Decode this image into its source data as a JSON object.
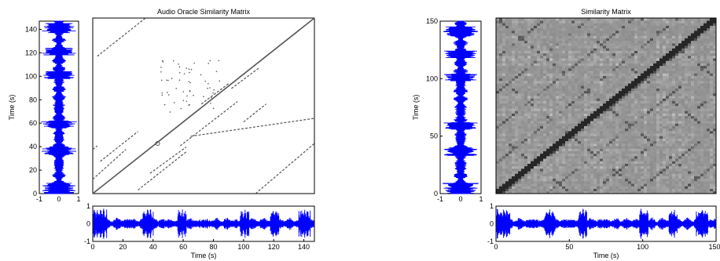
{
  "chart_data": [
    {
      "type": "heatmap",
      "title": "Audio Oracle Similarity Matrix",
      "description": "binary recurrence plot",
      "time_range": [
        0,
        147
      ],
      "main_diagonal": true,
      "recurrence_segments": [
        {
          "x0": 3,
          "y0": 115,
          "x1": 35,
          "y1": 147
        },
        {
          "x0": 0,
          "y0": 37,
          "x1": 3,
          "y1": 40
        },
        {
          "x0": 5,
          "y0": 27,
          "x1": 30,
          "y1": 52
        },
        {
          "x0": 30,
          "y0": 3,
          "x1": 62,
          "y1": 35
        },
        {
          "x0": 38,
          "y0": 17,
          "x1": 62,
          "y1": 39
        },
        {
          "x0": 0,
          "y0": 12,
          "x1": 22,
          "y1": 37
        },
        {
          "x0": 108,
          "y0": 0,
          "x1": 147,
          "y1": 42
        },
        {
          "x0": 58,
          "y0": 40,
          "x1": 96,
          "y1": 77
        },
        {
          "x0": 100,
          "y0": 60,
          "x1": 115,
          "y1": 75
        },
        {
          "x0": 65,
          "y0": 48,
          "x1": 147,
          "y1": 63
        },
        {
          "x0": 92,
          "y0": 88,
          "x1": 110,
          "y1": 105
        },
        {
          "x0": 72,
          "y0": 75,
          "x1": 90,
          "y1": 92
        }
      ],
      "markers": [
        {
          "x": 43,
          "y": 42
        }
      ],
      "left_waveform": {
        "ylabel": "Time (s)",
        "yticks": [
          0,
          20,
          40,
          60,
          80,
          100,
          120,
          140
        ],
        "xticks": [
          -1,
          0,
          1
        ]
      },
      "bottom_waveform": {
        "xlabel": "Time (s)",
        "xticks": [
          0,
          20,
          40,
          60,
          80,
          100,
          120,
          140
        ],
        "yticks": [
          -1,
          0,
          1
        ]
      }
    },
    {
      "type": "heatmap",
      "title": "Similarity Matrix",
      "description": "grayscale self-similarity matrix",
      "time_range": [
        0,
        150
      ],
      "main_diagonal": true,
      "left_waveform": {
        "ylabel": "Time (s)",
        "yticks": [
          0,
          50,
          100,
          150
        ],
        "xticks": [
          -1,
          0,
          1
        ]
      },
      "bottom_waveform": {
        "xlabel": "Time (s)",
        "xticks": [
          0,
          50,
          100,
          150
        ],
        "yticks": [
          -1,
          0,
          1
        ]
      }
    }
  ],
  "colors": {
    "waveform": "#0000ff",
    "recurrence": "#555555"
  },
  "waveform_loud_regions": [
    [
      0,
      9
    ],
    [
      33,
      40
    ],
    [
      56,
      62
    ],
    [
      98,
      104
    ],
    [
      118,
      124
    ],
    [
      137,
      145
    ]
  ],
  "icons": [
    "none"
  ]
}
